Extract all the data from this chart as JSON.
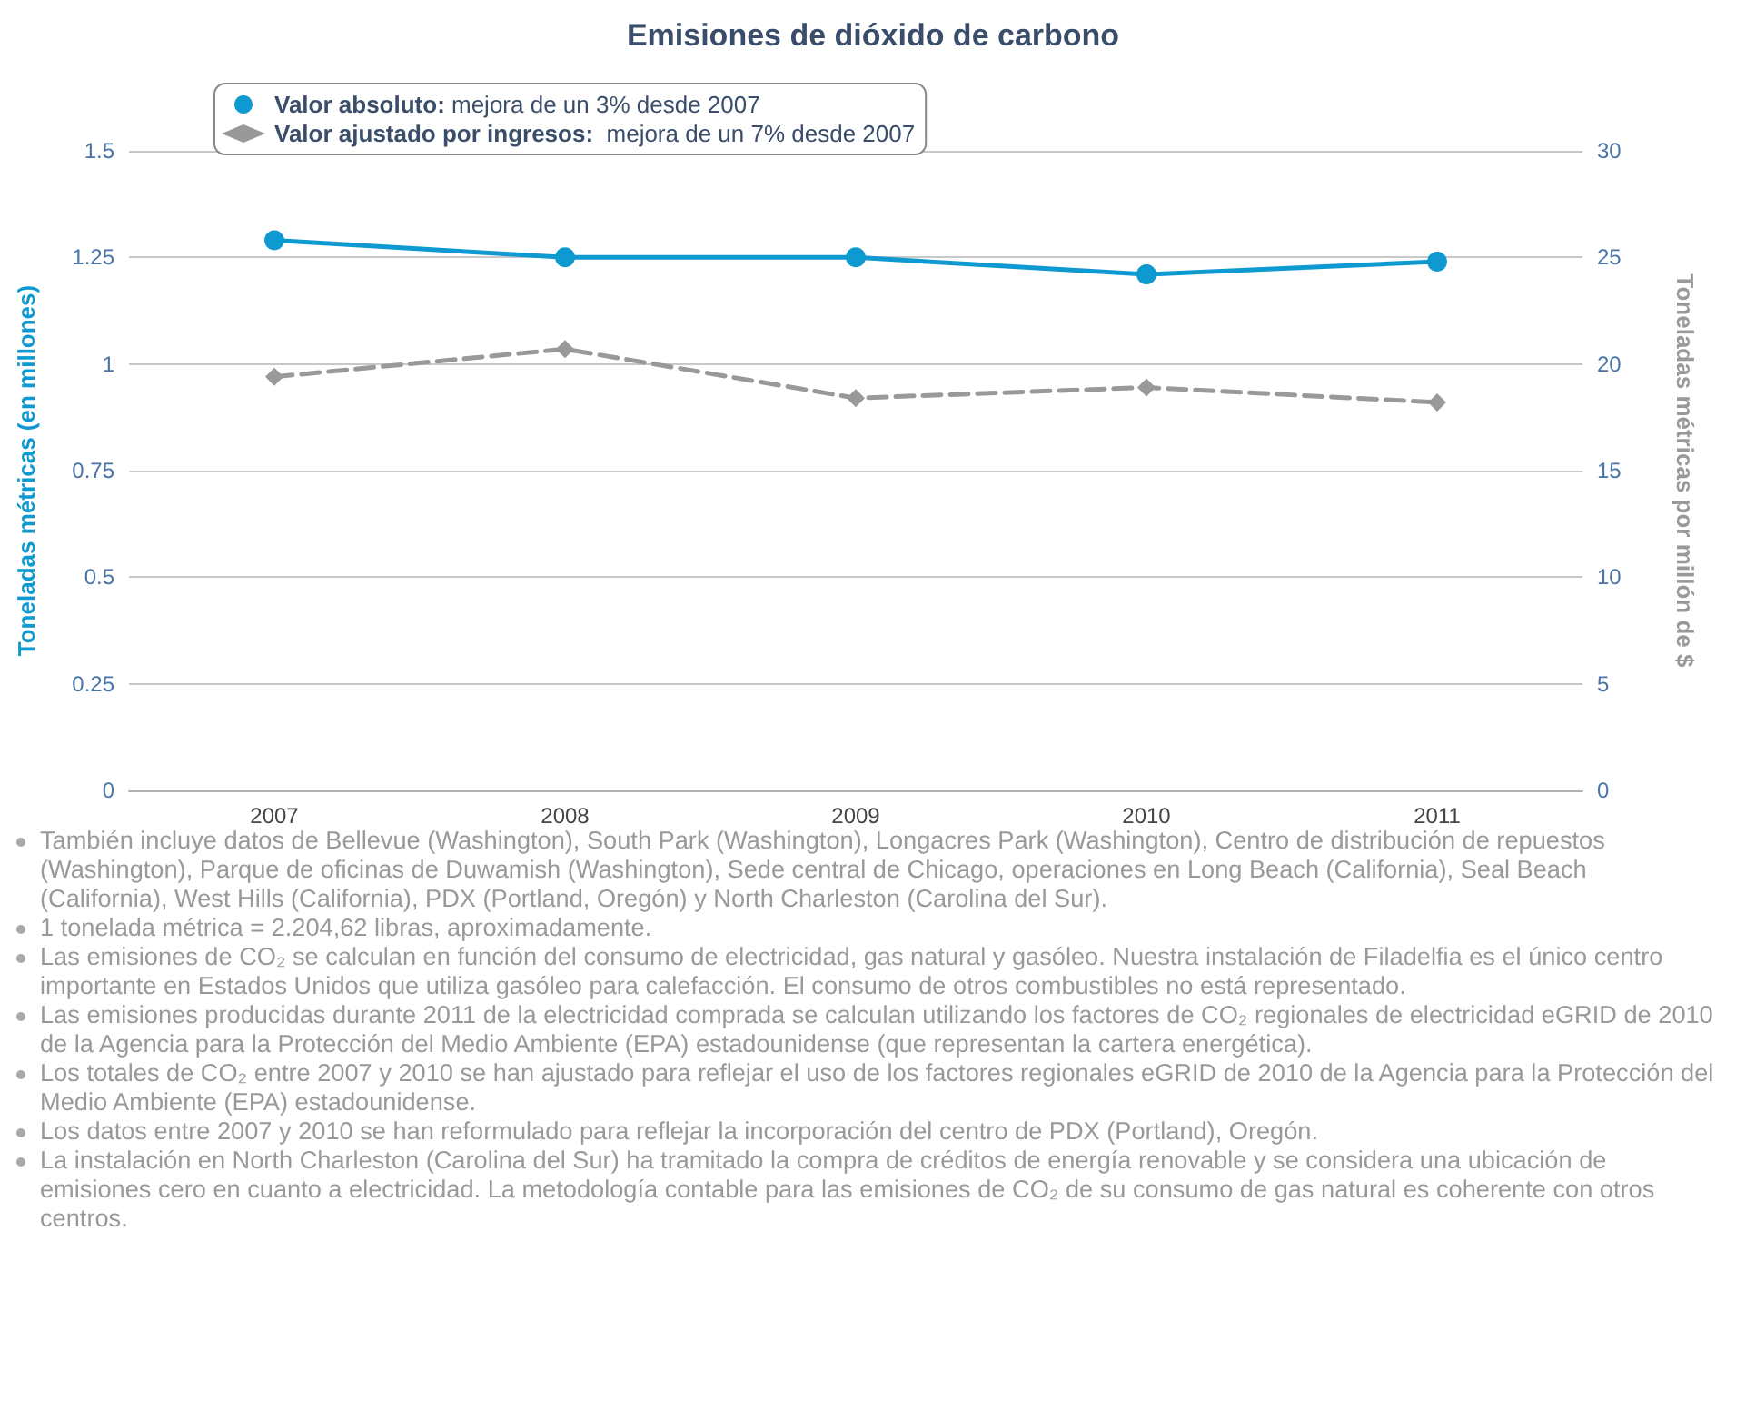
{
  "chart_data": {
    "type": "line",
    "title": "Emisiones de dióxido de carbono",
    "categories": [
      "2007",
      "2008",
      "2009",
      "2010",
      "2011"
    ],
    "ylabel": "Toneladas métricas (en millones)",
    "y2label": "Toneladas métricas por millón de $",
    "ylim": [
      0,
      1.5
    ],
    "yticks": [
      0,
      0.25,
      0.5,
      0.75,
      1,
      1.25,
      1.5
    ],
    "y2lim": [
      0,
      30
    ],
    "y2ticks": [
      0,
      5,
      10,
      15,
      20,
      25,
      30
    ],
    "grid": "y",
    "legend": "top left",
    "series": [
      {
        "name": "Valor absoluto: mejora de un 3% desde 2007",
        "color": "#0e9ad0",
        "values": [
          1.29,
          1.25,
          1.25,
          1.21,
          1.24
        ],
        "marker": "circle",
        "line_style": "solid"
      },
      {
        "name": "Valor ajustado por ingresos:  mejora de un 7% desde 2007",
        "color": "#999999",
        "values": [
          19.4,
          20.7,
          18.4,
          18.9,
          18.2
        ],
        "axis": "y2",
        "marker": "diamond",
        "line_style": "dashed"
      }
    ],
    "annotations": [
      "También incluye datos de Bellevue (Washington), South Park (Washington), Longacres Park (Washington), Centro de distribución de repuestos (Washington), Parque de oficinas de Duwamish (Washington), Sede central de Chicago, operaciones en Long Beach (California), Seal Beach (California), West Hills (California), PDX (Portland, Oregón) y North Charleston (Carolina del Sur).",
      "1 tonelada métrica = 2.204,62 libras, aproximadamente.",
      "Las emisiones de CO₂ se calculan en función del consumo de electricidad, gas natural y gasóleo. Nuestra instalación de Filadelfia es el único centro importante en Estados Unidos que utiliza gasóleo para calefacción. El consumo de otros combustibles no está representado.",
      "Las emisiones producidas durante 2011 de la electricidad comprada se calculan utilizando los factores de CO₂ regionales de electricidad eGRID de 2010 de la Agencia para la Protección del Medio Ambiente (EPA) estadounidense (que representan la cartera energética).",
      "Los totales de CO₂ entre 2007 y 2010 se han ajustado para reflejar el uso de los factores regionales eGRID de 2010 de la Agencia para la Protección del Medio Ambiente (EPA) estadounidense.",
      "Los datos entre 2007 y 2010 se han reformulado para reflejar la incorporación del centro de PDX (Portland), Oregón.",
      "La instalación en North Charleston (Carolina del Sur) ha tramitado la compra de créditos de energía renovable y se considera una ubicación de emisiones cero en cuanto a electricidad. La metodología contable para las emisiones de CO₂ de su consumo de gas natural es coherente con otros centros."
    ]
  }
}
